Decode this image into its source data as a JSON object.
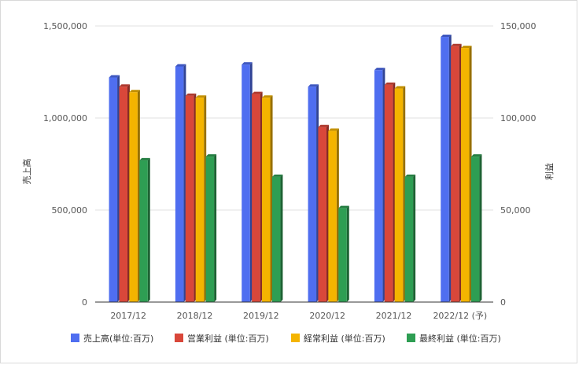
{
  "chart_data": {
    "type": "bar",
    "title": "",
    "categories": [
      "2017/12",
      "2018/12",
      "2019/12",
      "2020/12",
      "2021/12",
      "2022/12 (予)"
    ],
    "y_left_label": "売上高",
    "y_right_label": "利益",
    "y_left_ticks": [
      "0",
      "500,000",
      "1,000,000",
      "1,500,000"
    ],
    "y_right_ticks": [
      "0",
      "50,000",
      "100,000",
      "150,000"
    ],
    "y_left_range": [
      0,
      1500000
    ],
    "y_right_range": [
      0,
      150000
    ],
    "grid": true,
    "legend_position": "bottom",
    "series": [
      {
        "name": "売上高(単位:百万)",
        "axis": "left",
        "color": "#4f6ef0",
        "values": [
          1220000,
          1280000,
          1290000,
          1170000,
          1260000,
          1440000
        ]
      },
      {
        "name": "営業利益 (単位:百万)",
        "axis": "right",
        "color": "#d9473a",
        "values": [
          117000,
          112000,
          113000,
          95000,
          118000,
          139000
        ]
      },
      {
        "name": "経常利益 (単位:百万)",
        "axis": "right",
        "color": "#f4b400",
        "values": [
          114000,
          111000,
          111000,
          93000,
          116000,
          138000
        ]
      },
      {
        "name": "最終利益 (単位:百万)",
        "axis": "right",
        "color": "#2e9e53",
        "values": [
          77000,
          79000,
          68000,
          51000,
          68000,
          79000
        ]
      }
    ]
  }
}
